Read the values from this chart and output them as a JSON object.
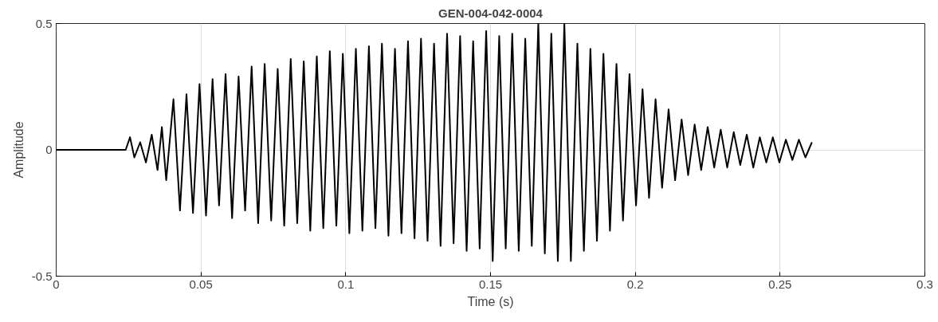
{
  "chart_data": {
    "type": "line",
    "title": "GEN-004-042-0004",
    "xlabel": "Time (s)",
    "ylabel": "Amplitude",
    "xlim": [
      0,
      0.3
    ],
    "ylim": [
      -0.5,
      0.5
    ],
    "xticks": [
      0,
      0.05,
      0.1,
      0.15,
      0.2,
      0.25,
      0.3
    ],
    "yticks": [
      -0.5,
      0,
      0.5
    ],
    "grid": true,
    "line_style": "solid",
    "x": [
      0,
      0.01,
      0.02,
      0.024,
      0.0255,
      0.027,
      0.029,
      0.031,
      0.033,
      0.035,
      0.0365,
      0.038,
      0.0405,
      0.04275,
      0.045,
      0.04725,
      0.0495,
      0.05175,
      0.054,
      0.05625,
      0.0585,
      0.06075,
      0.063,
      0.06525,
      0.0675,
      0.06975,
      0.072,
      0.07425,
      0.0765,
      0.07875,
      0.081,
      0.08325,
      0.0855,
      0.08775,
      0.09,
      0.09225,
      0.0945,
      0.09675,
      0.099,
      0.10125,
      0.1035,
      0.10575,
      0.108,
      0.11025,
      0.1125,
      0.11475,
      0.117,
      0.11925,
      0.1215,
      0.12375,
      0.126,
      0.12825,
      0.1305,
      0.13275,
      0.135,
      0.13725,
      0.1395,
      0.14175,
      0.144,
      0.14625,
      0.1485,
      0.15075,
      0.153,
      0.15525,
      0.1575,
      0.15975,
      0.162,
      0.16425,
      0.1665,
      0.16875,
      0.171,
      0.17325,
      0.1755,
      0.17775,
      0.18,
      0.18225,
      0.1845,
      0.18675,
      0.189,
      0.19125,
      0.1935,
      0.19575,
      0.198,
      0.20025,
      0.2025,
      0.20475,
      0.207,
      0.20925,
      0.2115,
      0.21375,
      0.216,
      0.21825,
      0.2205,
      0.22275,
      0.225,
      0.22725,
      0.2295,
      0.23175,
      0.234,
      0.23625,
      0.2385,
      0.24075,
      0.243,
      0.24525,
      0.2475,
      0.24975,
      0.252,
      0.25425,
      0.2565,
      0.25875,
      0.261
    ],
    "series": [
      {
        "color": "#000000",
        "values": [
          0,
          0,
          0,
          0,
          0.05,
          -0.03,
          0.03,
          -0.05,
          0.06,
          -0.08,
          0.09,
          -0.12,
          0.2,
          -0.24,
          0.22,
          -0.25,
          0.26,
          -0.26,
          0.28,
          -0.22,
          0.3,
          -0.27,
          0.29,
          -0.24,
          0.33,
          -0.29,
          0.34,
          -0.28,
          0.32,
          -0.3,
          0.36,
          -0.29,
          0.35,
          -0.32,
          0.37,
          -0.31,
          0.39,
          -0.3,
          0.38,
          -0.33,
          0.4,
          -0.32,
          0.41,
          -0.31,
          0.42,
          -0.34,
          0.4,
          -0.33,
          0.43,
          -0.35,
          0.44,
          -0.36,
          0.42,
          -0.38,
          0.46,
          -0.37,
          0.45,
          -0.4,
          0.43,
          -0.39,
          0.47,
          -0.44,
          0.45,
          -0.39,
          0.46,
          -0.4,
          0.44,
          -0.38,
          0.5,
          -0.41,
          0.46,
          -0.44,
          0.5,
          -0.44,
          0.42,
          -0.4,
          0.4,
          -0.36,
          0.38,
          -0.32,
          0.34,
          -0.28,
          0.3,
          -0.22,
          0.24,
          -0.19,
          0.2,
          -0.15,
          0.16,
          -0.12,
          0.12,
          -0.1,
          0.1,
          -0.08,
          0.09,
          -0.07,
          0.08,
          -0.07,
          0.07,
          -0.06,
          0.06,
          -0.07,
          0.05,
          -0.05,
          0.05,
          -0.05,
          0.04,
          -0.04,
          0.04,
          -0.03,
          0.03
        ]
      }
    ]
  }
}
